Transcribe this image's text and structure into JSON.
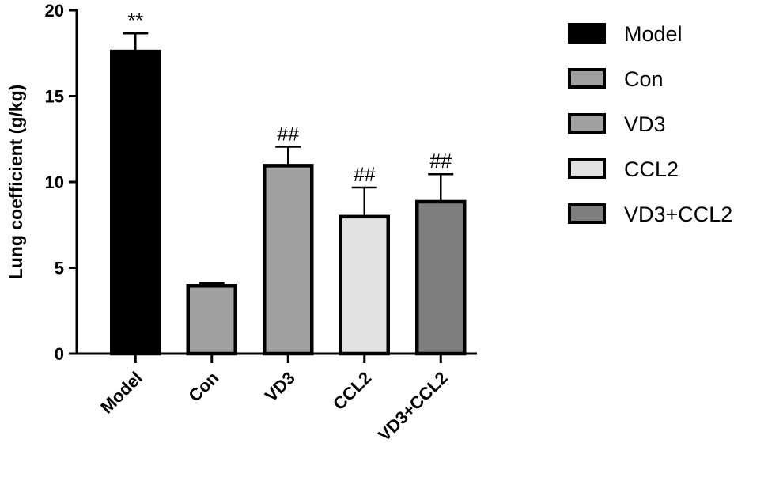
{
  "chart_data": {
    "type": "bar",
    "categories": [
      "Model",
      "Con",
      "VD3",
      "CCL2",
      "VD3+CCL2"
    ],
    "values": [
      17.6,
      3.95,
      10.95,
      7.98,
      8.85
    ],
    "errors": [
      1.05,
      0.15,
      1.1,
      1.7,
      1.6
    ],
    "annotations": [
      "**",
      "",
      "##",
      "##",
      "##"
    ],
    "colors": [
      "#000000",
      "#a0a0a0",
      "#a0a0a0",
      "#e2e2e2",
      "#7e7e7e"
    ],
    "ylabel": "Lung coefficient (g/kg)",
    "xlabel": "",
    "ylim": [
      0,
      20
    ],
    "yticks": [
      0,
      5,
      10,
      15,
      20
    ],
    "grid": false,
    "legend": {
      "placement": "right",
      "entries": [
        "Model",
        "Con",
        "VD3",
        "CCL2",
        "VD3+CCL2"
      ]
    }
  }
}
